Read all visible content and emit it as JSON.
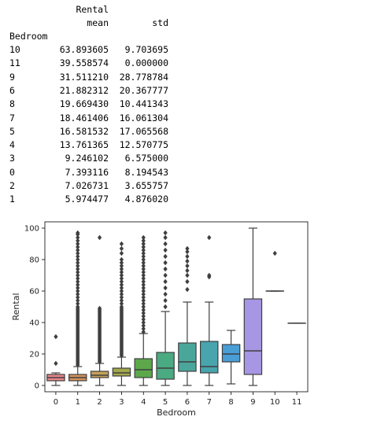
{
  "table": {
    "header_top": "Rental",
    "col_mean": "mean",
    "col_std": "std",
    "index_name": "Bedroom",
    "rows": [
      {
        "bedroom": "10",
        "mean": "63.893605",
        "std": "9.703695"
      },
      {
        "bedroom": "11",
        "mean": "39.558574",
        "std": "0.000000"
      },
      {
        "bedroom": "9",
        "mean": "31.511210",
        "std": "28.778784"
      },
      {
        "bedroom": "6",
        "mean": "21.882312",
        "std": "20.367777"
      },
      {
        "bedroom": "8",
        "mean": "19.669430",
        "std": "10.441343"
      },
      {
        "bedroom": "7",
        "mean": "18.461406",
        "std": "16.061304"
      },
      {
        "bedroom": "5",
        "mean": "16.581532",
        "std": "17.065568"
      },
      {
        "bedroom": "4",
        "mean": "13.761365",
        "std": "12.570775"
      },
      {
        "bedroom": "3",
        "mean": "9.246102",
        "std": "6.575000"
      },
      {
        "bedroom": "0",
        "mean": "7.393116",
        "std": "8.194543"
      },
      {
        "bedroom": "2",
        "mean": "7.026731",
        "std": "3.655757"
      },
      {
        "bedroom": "1",
        "mean": "5.974477",
        "std": "4.876020"
      }
    ]
  },
  "chart_data": {
    "type": "box",
    "xlabel": "Bedroom",
    "ylabel": "Rental",
    "ylim": [
      -4,
      104
    ],
    "yticks": [
      0,
      20,
      40,
      60,
      80,
      100
    ],
    "categories": [
      "0",
      "1",
      "2",
      "3",
      "4",
      "5",
      "6",
      "7",
      "8",
      "9",
      "10",
      "11"
    ],
    "colors": [
      "#e8868b",
      "#d3935a",
      "#c6a15a",
      "#a3a84b",
      "#5ca84b",
      "#4aaa82",
      "#4aa69a",
      "#48a4ad",
      "#4a9ed6",
      "#a796e3",
      "#d690e0",
      "#e58bc3"
    ],
    "boxes": [
      {
        "q1": 3,
        "median": 5,
        "q3": 7,
        "whislo": 0,
        "whishi": 8,
        "outliers": [
          14,
          31
        ]
      },
      {
        "q1": 3,
        "median": 5,
        "q3": 7,
        "whislo": 0,
        "whishi": 12,
        "outliers": [
          13,
          14,
          15,
          16,
          17,
          18,
          19,
          20,
          21,
          22,
          23,
          24,
          25,
          26,
          27,
          28,
          29,
          30,
          31,
          32,
          33,
          34,
          35,
          36,
          37,
          38,
          39,
          40,
          41,
          42,
          43,
          44,
          45,
          46,
          47,
          48,
          49,
          50,
          52,
          54,
          56,
          58,
          60,
          62,
          64,
          66,
          68,
          70,
          72,
          74,
          76,
          78,
          80,
          82,
          84,
          86,
          88,
          90,
          92,
          94,
          96,
          97
        ]
      },
      {
        "q1": 5,
        "median": 6.5,
        "q3": 9,
        "whislo": 0,
        "whishi": 14,
        "outliers": [
          15,
          16,
          17,
          18,
          19,
          20,
          21,
          22,
          23,
          24,
          25,
          26,
          27,
          28,
          29,
          30,
          31,
          32,
          33,
          34,
          35,
          36,
          37,
          38,
          39,
          40,
          41,
          42,
          43,
          44,
          45,
          46,
          47,
          48,
          49,
          94
        ]
      },
      {
        "q1": 6,
        "median": 8,
        "q3": 11,
        "whislo": 0,
        "whishi": 18,
        "outliers": [
          19,
          20,
          21,
          22,
          23,
          24,
          25,
          26,
          27,
          28,
          29,
          30,
          31,
          32,
          33,
          34,
          35,
          36,
          37,
          38,
          39,
          40,
          41,
          42,
          43,
          44,
          45,
          46,
          47,
          48,
          49,
          50,
          52,
          54,
          56,
          58,
          60,
          62,
          64,
          66,
          68,
          70,
          72,
          74,
          76,
          78,
          80,
          84,
          87,
          90
        ]
      },
      {
        "q1": 5,
        "median": 10,
        "q3": 17,
        "whislo": 0,
        "whishi": 33,
        "outliers": [
          34,
          36,
          38,
          40,
          42,
          44,
          46,
          48,
          50,
          52,
          54,
          56,
          58,
          60,
          62,
          64,
          66,
          68,
          70,
          72,
          74,
          76,
          78,
          80,
          82,
          84,
          86,
          88,
          90,
          92,
          94
        ]
      },
      {
        "q1": 4,
        "median": 11,
        "q3": 21,
        "whislo": 0,
        "whishi": 47,
        "outliers": [
          50,
          54,
          58,
          62,
          66,
          70,
          74,
          78,
          82,
          86,
          90,
          94,
          97
        ]
      },
      {
        "q1": 9,
        "median": 15,
        "q3": 27,
        "whislo": 0,
        "whishi": 53,
        "outliers": [
          61,
          66,
          70,
          73,
          76,
          79,
          82,
          85,
          87
        ]
      },
      {
        "q1": 8,
        "median": 12,
        "q3": 28,
        "whislo": 0,
        "whishi": 53,
        "outliers": [
          69,
          70,
          94
        ]
      },
      {
        "q1": 15,
        "median": 20,
        "q3": 26,
        "whislo": 1,
        "whishi": 35,
        "outliers": []
      },
      {
        "q1": 7,
        "median": 22,
        "q3": 55,
        "whislo": 0,
        "whishi": 100,
        "outliers": []
      },
      {
        "q1": 60,
        "median": 60,
        "q3": 60,
        "whislo": 60,
        "whishi": 60,
        "outliers": [
          84
        ]
      },
      {
        "q1": 39.56,
        "median": 39.56,
        "q3": 39.56,
        "whislo": 39.56,
        "whishi": 39.56,
        "outliers": []
      }
    ]
  }
}
